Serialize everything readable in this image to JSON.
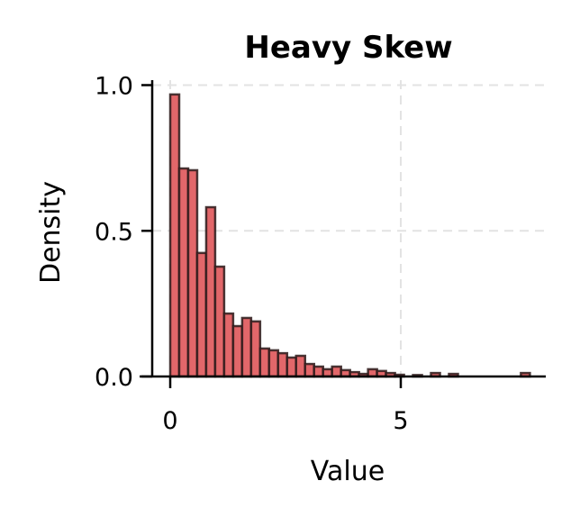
{
  "chart_data": {
    "type": "bar",
    "subtype": "histogram",
    "title": "Heavy Skew",
    "xlabel": "Value",
    "ylabel": "Density",
    "xlim": [
      -0.65,
      8.1
    ],
    "ylim": [
      0,
      1.01
    ],
    "xticks": [
      0,
      5
    ],
    "xtick_labels": [
      "0",
      "5"
    ],
    "yticks": [
      0.0,
      0.5,
      1.0
    ],
    "ytick_labels": [
      "0.0",
      "0.5",
      "1.0"
    ],
    "grid": true,
    "legend": null,
    "bin_start": 0.0,
    "bin_width": 0.195,
    "values": [
      0.968,
      0.714,
      0.708,
      0.424,
      0.581,
      0.377,
      0.216,
      0.173,
      0.201,
      0.189,
      0.096,
      0.09,
      0.08,
      0.065,
      0.071,
      0.043,
      0.034,
      0.025,
      0.034,
      0.022,
      0.015,
      0.009,
      0.025,
      0.019,
      0.012,
      0.006,
      0.0,
      0.005,
      0.0,
      0.012,
      0.0,
      0.009,
      0.0,
      0.0,
      0.0,
      0.0,
      0.0,
      0.0,
      0.0,
      0.012
    ],
    "colors": {
      "bar_fill": "#e2676a",
      "bar_edge": "#2b1a1a",
      "grid": "#e3e3e3",
      "axis": "#000000"
    }
  }
}
